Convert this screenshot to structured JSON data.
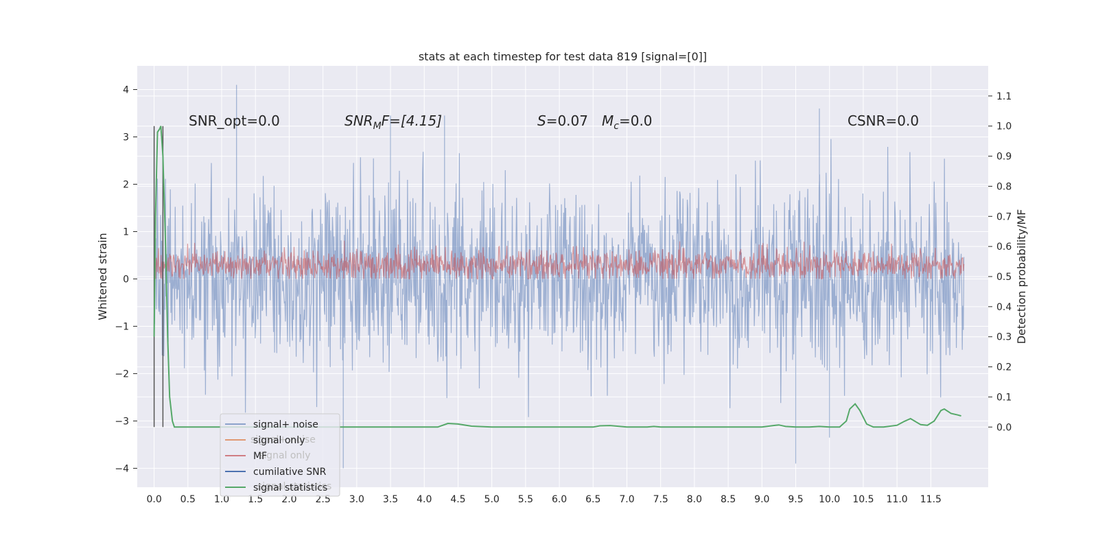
{
  "chart_data": {
    "type": "line",
    "title": "stats at each timestep for test data 819 [signal=[0]]",
    "ylabel": "Whitened strain",
    "y2label": "Detection probability/MF",
    "xlim": [
      -0.25,
      12.35
    ],
    "ylim": [
      -4.4,
      4.5
    ],
    "y2lim": [
      -0.2,
      1.2
    ],
    "xticks": [
      0.0,
      0.5,
      1.0,
      1.5,
      2.0,
      2.5,
      3.0,
      3.5,
      4.0,
      4.5,
      5.0,
      5.5,
      6.0,
      6.5,
      7.0,
      7.5,
      8.0,
      8.5,
      9.0,
      9.5,
      10.0,
      10.5,
      11.0,
      11.5
    ],
    "yticks": [
      -4,
      -3,
      -2,
      -1,
      0,
      1,
      2,
      3,
      4
    ],
    "y2ticks": [
      0.0,
      0.1,
      0.2,
      0.3,
      0.4,
      0.5,
      0.6,
      0.7,
      0.8,
      0.9,
      1.0,
      1.1
    ],
    "grid": true,
    "legend_position": "lower-left",
    "annotations": {
      "snr_opt": "SNR_opt=0.0",
      "snr_mf_sym": "SNR",
      "snr_mf_sub": "M",
      "snr_mf_rest": "F=[4.15]",
      "s_sym": "S",
      "s_rest": "=0.07",
      "mc_sym": "M",
      "mc_sub": "c",
      "mc_rest": "=0.0",
      "csnr": "CSNR=0.0"
    },
    "legend": [
      "signal+ noise",
      "signal only",
      "MF",
      "cumilative SNR",
      "signal statistics"
    ],
    "legend_ghost": [
      "signal+ noise",
      "signal only",
      "signal statistics"
    ],
    "series": [
      {
        "name": "signal+ noise",
        "color": "#4c72b0",
        "t_start": 0.0,
        "t_end": 11.99,
        "n": 1500,
        "sigma": 1.0,
        "seed": 819,
        "spikes": [
          [
            1.22,
            4.1
          ],
          [
            2.8,
            -4.0
          ],
          [
            9.5,
            -3.9
          ],
          [
            9.85,
            3.6
          ],
          [
            10.0,
            -3.35
          ],
          [
            3.5,
            3.45
          ],
          [
            4.3,
            3.45
          ]
        ]
      },
      {
        "name": "MF",
        "color": "#c44e52",
        "t_start": 0.0,
        "t_end": 11.99,
        "n": 1500,
        "center": 0.3,
        "sigma": 0.17,
        "seed": 4150
      },
      {
        "name": "signal statistics",
        "color": "#55a868",
        "x": [
          0.0,
          0.02,
          0.05,
          0.08,
          0.1,
          0.13,
          0.17,
          0.2,
          0.23,
          0.27,
          0.3,
          0.33,
          0.5,
          1.0,
          2.0,
          3.0,
          4.0,
          4.2,
          4.35,
          4.5,
          4.7,
          5.0,
          5.5,
          6.0,
          6.5,
          6.6,
          6.75,
          6.9,
          7.0,
          7.3,
          7.4,
          7.5,
          8.0,
          8.5,
          9.0,
          9.2,
          9.25,
          9.35,
          9.5,
          9.7,
          9.85,
          10.0,
          10.15,
          10.25,
          10.3,
          10.38,
          10.45,
          10.55,
          10.65,
          10.8,
          11.0,
          11.1,
          11.2,
          11.35,
          11.45,
          11.55,
          11.65,
          11.7,
          11.8,
          11.9,
          11.95
        ],
        "y": [
          0.3,
          0.7,
          0.98,
          0.99,
          1.0,
          0.9,
          0.6,
          0.3,
          0.1,
          0.02,
          0.0,
          0.0,
          0.0,
          0.0,
          0.0,
          0.0,
          0.0,
          0.0,
          0.012,
          0.01,
          0.003,
          0.0,
          0.0,
          0.0,
          0.0,
          0.004,
          0.005,
          0.002,
          0.0,
          0.0,
          0.002,
          0.0,
          0.0,
          0.0,
          0.0,
          0.006,
          0.007,
          0.002,
          0.0,
          0.0,
          0.002,
          0.0,
          0.0,
          0.02,
          0.06,
          0.077,
          0.055,
          0.01,
          0.0,
          0.0,
          0.006,
          0.018,
          0.028,
          0.008,
          0.006,
          0.02,
          0.055,
          0.06,
          0.045,
          0.04,
          0.037
        ]
      },
      {
        "name": "cumilative SNR",
        "color": "#4c72b0",
        "x": [
          0.0,
          0.0,
          0.0
        ],
        "y": [
          0.0,
          0.0,
          0.0
        ]
      }
    ],
    "marker_lines": [
      {
        "t": 0.0,
        "y_from": 0.0,
        "y_to": 1.0,
        "color": "#555555"
      },
      {
        "t": 0.13,
        "y_from": 0.0,
        "y_to": 1.0,
        "color": "#555555"
      }
    ]
  }
}
